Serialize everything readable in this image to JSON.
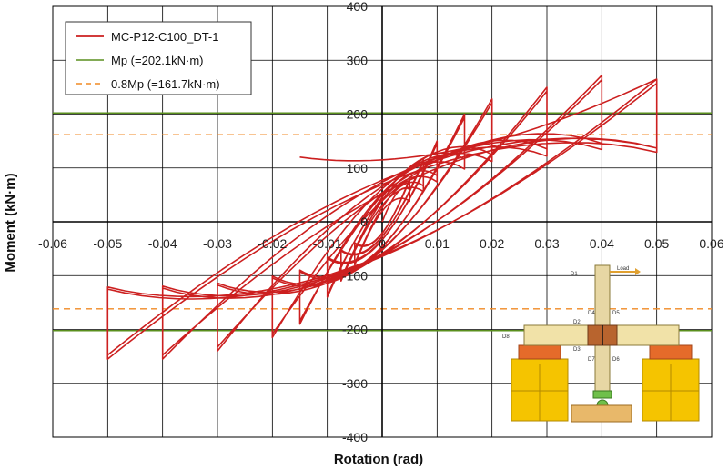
{
  "chart_data": {
    "type": "line",
    "xlabel": "Rotation (rad)",
    "ylabel": "Moment (kN·m)",
    "xlim": [
      -0.06,
      0.06
    ],
    "ylim": [
      -400,
      400
    ],
    "x_ticks": [
      -0.06,
      -0.05,
      -0.04,
      -0.03,
      -0.02,
      -0.01,
      0,
      0.01,
      0.02,
      0.03,
      0.04,
      0.05,
      0.06
    ],
    "x_tick_labels": [
      "-0.06",
      "-0.05",
      "-0.04",
      "-0.03",
      "-0.02",
      "-0.01",
      "0",
      "0.01",
      "0.02",
      "0.03",
      "0.04",
      "0.05",
      "0.06"
    ],
    "y_ticks": [
      -400,
      -300,
      -200,
      -100,
      0,
      100,
      200,
      300,
      400
    ],
    "y_tick_labels": [
      "-400",
      "-300",
      "-200",
      "-100",
      "0",
      "100",
      "200",
      "300",
      "400"
    ],
    "grid": true,
    "legend_position": "top-left",
    "series": [
      {
        "name": "MC-P12-C100_DT-1",
        "color": "#cc1f1f",
        "style": "solid",
        "cycles": [
          {
            "amp": 0.005,
            "Mpos": 80,
            "Mneg": -80
          },
          {
            "amp": 0.0075,
            "Mpos": 115,
            "Mneg": -110
          },
          {
            "amp": 0.01,
            "Mpos": 150,
            "Mneg": -140
          },
          {
            "amp": 0.015,
            "Mpos": 200,
            "Mneg": -190
          },
          {
            "amp": 0.02,
            "Mpos": 228,
            "Mneg": -215
          },
          {
            "amp": 0.03,
            "Mpos": 250,
            "Mneg": -240
          },
          {
            "amp": 0.04,
            "Mpos": 272,
            "Mneg": -255
          },
          {
            "amp": 0.05,
            "Mpos": 265,
            "Mneg": -255
          }
        ],
        "final_branch": [
          [
            0.05,
            265
          ],
          [
            -0.015,
            72
          ]
        ]
      },
      {
        "name": "Mp (=202.1kN·m)",
        "color": "#5a8f1e",
        "style": "solid",
        "values": [
          202.1,
          -202.1
        ]
      },
      {
        "name": "0.8Mp (=161.7kN·m)",
        "color": "#f08a24",
        "style": "dashed",
        "values": [
          161.7,
          -161.7
        ]
      }
    ]
  },
  "inset": {
    "labels": {
      "d1": "D1",
      "load": "Load",
      "d2": "D2",
      "d3": "D3",
      "d4": "D4",
      "d5": "D5",
      "d6": "D6",
      "d7": "D7",
      "d8": "D8"
    }
  }
}
